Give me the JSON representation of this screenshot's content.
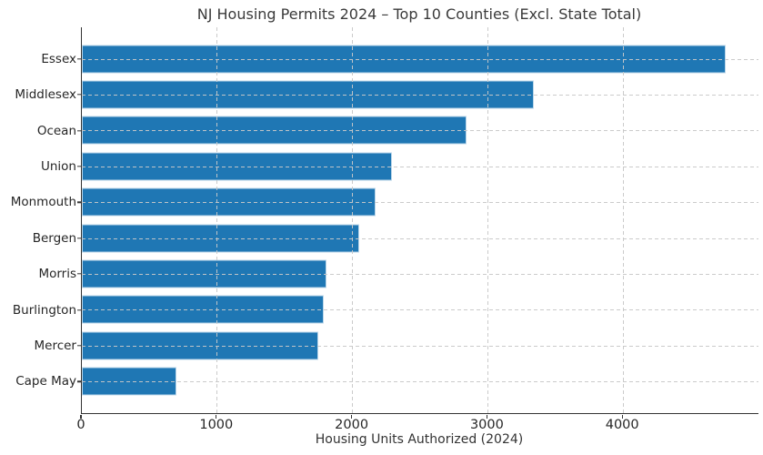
{
  "chart_data": {
    "type": "bar",
    "orientation": "horizontal",
    "title": "NJ Housing Permits 2024 – Top 10 Counties (Excl. State Total)",
    "categories": [
      "Essex",
      "Middlesex",
      "Ocean",
      "Union",
      "Monmouth",
      "Bergen",
      "Morris",
      "Burlington",
      "Mercer",
      "Cape May"
    ],
    "values": [
      4755,
      3340,
      2845,
      2290,
      2170,
      2050,
      1810,
      1790,
      1745,
      700
    ],
    "xlabel": "Housing Units Authorized (2024)",
    "ylabel": "",
    "xlim": [
      0,
      5000
    ],
    "xticks": [
      0,
      1000,
      2000,
      3000,
      4000
    ],
    "grid": true,
    "grid_style": "dashed",
    "legend": "none",
    "bar_color": "#1f77b4",
    "bar_edge_color": "#bcd7ea",
    "grid_color": "#c8c8c8",
    "axis_color": "#333333",
    "text_color": "#262626",
    "title_color": "#3a3a3a",
    "background_color": "#ffffff"
  }
}
